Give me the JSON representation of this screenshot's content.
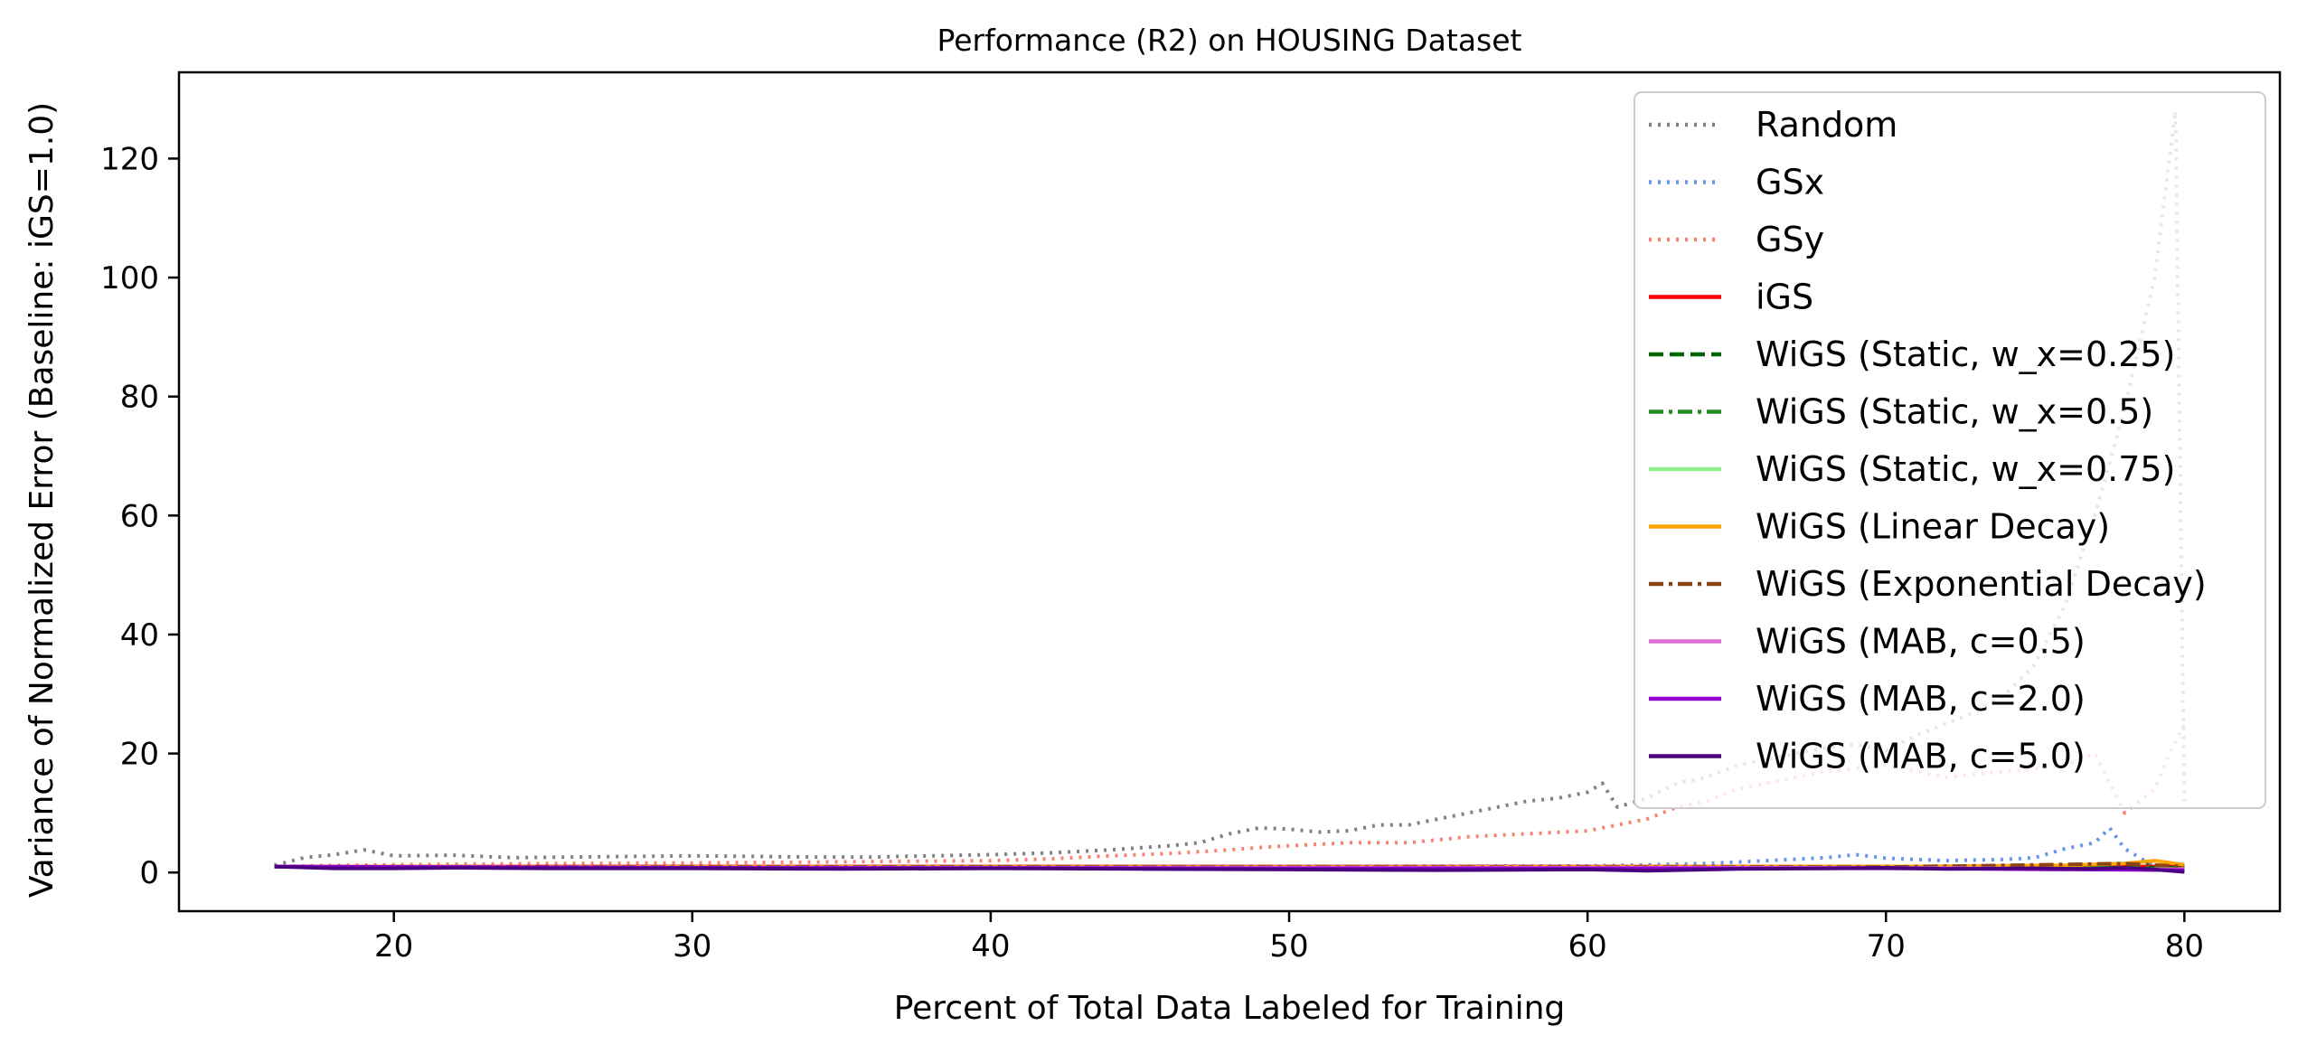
{
  "chart_data": {
    "type": "line",
    "title": "Performance (R2) on HOUSING Dataset",
    "xlabel": "Percent of Total Data Labeled for Training",
    "ylabel": "Variance of Normalized Error (Baseline: iGS=1.0)",
    "xlim": [
      12.8,
      83.2
    ],
    "ylim": [
      -6.5,
      134.5
    ],
    "xticks": [
      20,
      30,
      40,
      50,
      60,
      70,
      80
    ],
    "yticks": [
      0,
      20,
      40,
      60,
      80,
      100,
      120
    ],
    "grid": false,
    "legend_position": "top-right",
    "series": [
      {
        "name": "Random",
        "color": "#808080",
        "dash": "dotted",
        "points": [
          [
            16,
            1.2
          ],
          [
            17,
            2.5
          ],
          [
            18,
            3.0
          ],
          [
            19,
            3.8
          ],
          [
            20,
            2.8
          ],
          [
            22,
            2.9
          ],
          [
            24,
            2.5
          ],
          [
            26,
            2.6
          ],
          [
            28,
            2.7
          ],
          [
            30,
            2.8
          ],
          [
            32,
            2.7
          ],
          [
            34,
            2.6
          ],
          [
            36,
            2.6
          ],
          [
            38,
            2.8
          ],
          [
            40,
            3.0
          ],
          [
            42,
            3.3
          ],
          [
            44,
            3.8
          ],
          [
            46,
            4.5
          ],
          [
            47,
            5.0
          ],
          [
            48,
            6.5
          ],
          [
            49,
            7.5
          ],
          [
            50,
            7.3
          ],
          [
            51,
            6.8
          ],
          [
            52,
            7.0
          ],
          [
            53,
            8.0
          ],
          [
            54,
            8.0
          ],
          [
            55,
            9.0
          ],
          [
            56,
            10.0
          ],
          [
            57,
            11.0
          ],
          [
            58,
            12.0
          ],
          [
            59,
            12.5
          ],
          [
            60,
            13.5
          ],
          [
            60.5,
            15.0
          ],
          [
            61,
            11.0
          ],
          [
            62,
            12.5
          ],
          [
            63,
            15.0
          ],
          [
            64,
            16.0
          ],
          [
            65,
            18.0
          ],
          [
            66,
            19.0
          ],
          [
            67,
            20.0
          ],
          [
            68,
            21.0
          ],
          [
            69,
            21.5
          ],
          [
            70,
            20.5
          ],
          [
            71,
            23.0
          ],
          [
            72,
            25.0
          ],
          [
            73,
            27.0
          ],
          [
            74,
            30.0
          ],
          [
            75,
            35.0
          ],
          [
            76,
            45.0
          ],
          [
            77,
            60.0
          ],
          [
            78,
            78.0
          ],
          [
            79,
            100.0
          ],
          [
            79.7,
            128.0
          ],
          [
            80,
            12.0
          ]
        ]
      },
      {
        "name": "GSx",
        "color": "#6495ED",
        "dash": "dotted",
        "points": [
          [
            16,
            1.0
          ],
          [
            20,
            0.9
          ],
          [
            30,
            0.9
          ],
          [
            40,
            1.0
          ],
          [
            50,
            1.0
          ],
          [
            60,
            1.1
          ],
          [
            62,
            1.3
          ],
          [
            64,
            1.5
          ],
          [
            66,
            2.0
          ],
          [
            68,
            2.5
          ],
          [
            69,
            3.0
          ],
          [
            70,
            2.4
          ],
          [
            72,
            2.0
          ],
          [
            74,
            2.2
          ],
          [
            75,
            2.5
          ],
          [
            76,
            4.0
          ],
          [
            77,
            5.0
          ],
          [
            77.5,
            7.5
          ],
          [
            78,
            4.0
          ],
          [
            79,
            1.0
          ],
          [
            80,
            1.0
          ]
        ]
      },
      {
        "name": "GSy",
        "color": "#FA8072",
        "dash": "dotted",
        "points": [
          [
            16,
            1.0
          ],
          [
            18,
            1.2
          ],
          [
            20,
            1.3
          ],
          [
            25,
            1.5
          ],
          [
            30,
            1.6
          ],
          [
            35,
            1.8
          ],
          [
            40,
            2.0
          ],
          [
            42,
            2.3
          ],
          [
            44,
            2.8
          ],
          [
            46,
            3.2
          ],
          [
            48,
            3.8
          ],
          [
            49,
            4.2
          ],
          [
            50,
            4.5
          ],
          [
            52,
            5.0
          ],
          [
            54,
            5.0
          ],
          [
            56,
            6.0
          ],
          [
            58,
            6.5
          ],
          [
            60,
            7.0
          ],
          [
            61,
            8.0
          ],
          [
            62,
            9.0
          ],
          [
            63,
            11.0
          ],
          [
            64,
            12.0
          ],
          [
            65,
            14.0
          ],
          [
            66,
            15.0
          ],
          [
            67,
            16.0
          ],
          [
            68,
            17.0
          ],
          [
            70,
            18.0
          ],
          [
            72,
            16.0
          ],
          [
            74,
            17.0
          ],
          [
            75,
            17.5
          ],
          [
            76,
            18.0
          ],
          [
            77,
            20.0
          ],
          [
            78,
            10.0
          ],
          [
            79,
            14.0
          ],
          [
            79.5,
            20.0
          ],
          [
            80,
            25.0
          ]
        ]
      },
      {
        "name": "iGS",
        "color": "#FF0000",
        "dash": "solid",
        "points": [
          [
            16,
            1.0
          ],
          [
            80,
            1.0
          ]
        ]
      },
      {
        "name": "WiGS (Static, w_x=0.25)",
        "color": "#006400",
        "dash": "dashed",
        "points": [
          [
            16,
            1.0
          ],
          [
            30,
            0.9
          ],
          [
            50,
            0.9
          ],
          [
            70,
            0.9
          ],
          [
            80,
            0.8
          ]
        ]
      },
      {
        "name": "WiGS (Static, w_x=0.5)",
        "color": "#228B22",
        "dash": "dashdot",
        "points": [
          [
            16,
            1.0
          ],
          [
            30,
            0.9
          ],
          [
            50,
            0.9
          ],
          [
            70,
            0.9
          ],
          [
            80,
            0.8
          ]
        ]
      },
      {
        "name": "WiGS (Static, w_x=0.75)",
        "color": "#90EE90",
        "dash": "solid",
        "points": [
          [
            16,
            1.0
          ],
          [
            30,
            0.9
          ],
          [
            50,
            0.9
          ],
          [
            70,
            0.9
          ],
          [
            78,
            0.5
          ],
          [
            80,
            0.6
          ]
        ]
      },
      {
        "name": "WiGS (Linear Decay)",
        "color": "#FFA500",
        "dash": "solid",
        "points": [
          [
            16,
            1.0
          ],
          [
            30,
            0.9
          ],
          [
            50,
            0.9
          ],
          [
            70,
            1.0
          ],
          [
            76,
            1.2
          ],
          [
            78,
            1.5
          ],
          [
            79,
            2.0
          ],
          [
            80,
            1.3
          ]
        ]
      },
      {
        "name": "WiGS (Exponential Decay)",
        "color": "#8B4513",
        "dash": "dashdot",
        "points": [
          [
            16,
            1.0
          ],
          [
            30,
            0.9
          ],
          [
            50,
            0.9
          ],
          [
            70,
            0.9
          ],
          [
            78,
            1.5
          ],
          [
            80,
            1.0
          ]
        ]
      },
      {
        "name": "WiGS (MAB, c=0.5)",
        "color": "#DA70D6",
        "dash": "solid",
        "points": [
          [
            16,
            1.0
          ],
          [
            30,
            0.8
          ],
          [
            50,
            0.8
          ],
          [
            70,
            0.8
          ],
          [
            80,
            0.5
          ]
        ]
      },
      {
        "name": "WiGS (MAB, c=2.0)",
        "color": "#9400D3",
        "dash": "solid",
        "points": [
          [
            16,
            1.0
          ],
          [
            30,
            0.8
          ],
          [
            50,
            0.7
          ],
          [
            70,
            0.7
          ],
          [
            80,
            0.4
          ]
        ]
      },
      {
        "name": "WiGS (MAB, c=5.0)",
        "color": "#4B0082",
        "dash": "solid",
        "points": [
          [
            16,
            1.0
          ],
          [
            18,
            0.7
          ],
          [
            20,
            0.7
          ],
          [
            22,
            0.8
          ],
          [
            25,
            0.7
          ],
          [
            30,
            0.7
          ],
          [
            35,
            0.6
          ],
          [
            40,
            0.7
          ],
          [
            45,
            0.6
          ],
          [
            50,
            0.5
          ],
          [
            55,
            0.4
          ],
          [
            60,
            0.5
          ],
          [
            62,
            0.3
          ],
          [
            65,
            0.6
          ],
          [
            68,
            0.7
          ],
          [
            70,
            0.8
          ],
          [
            72,
            0.6
          ],
          [
            75,
            0.7
          ],
          [
            77,
            0.6
          ],
          [
            78,
            0.8
          ],
          [
            79,
            0.5
          ],
          [
            80,
            0.1
          ]
        ]
      }
    ]
  }
}
